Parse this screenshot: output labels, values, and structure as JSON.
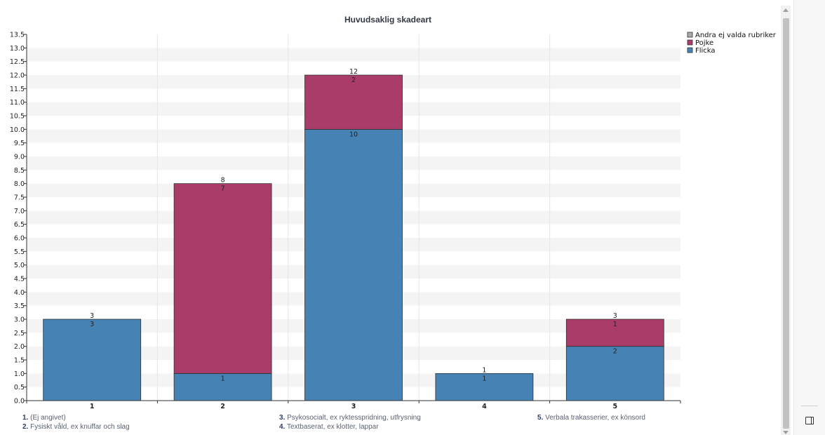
{
  "chart_data": {
    "type": "bar",
    "stacked": true,
    "title": "Huvudsaklig skadeart",
    "categories": [
      "1",
      "2",
      "3",
      "4",
      "5"
    ],
    "series": [
      {
        "name": "Flicka",
        "color": "#4682b4",
        "values": [
          3,
          1,
          10,
          1,
          2
        ]
      },
      {
        "name": "Pojke",
        "color": "#aa3c69",
        "values": [
          0,
          7,
          2,
          0,
          1
        ]
      },
      {
        "name": "Andra ej valda rubriker",
        "color": "#a9a9a9",
        "values": [
          0,
          0,
          0,
          0,
          0
        ]
      }
    ],
    "totals": [
      3,
      8,
      12,
      1,
      3
    ],
    "ylim": [
      0,
      13.5
    ],
    "ytick_step": 0.5,
    "ytick_labels": [
      "0.0",
      "0.5",
      "1.0",
      "1.5",
      "2.0",
      "2.5",
      "3.0",
      "3.5",
      "4.0",
      "4.5",
      "5.0",
      "5.5",
      "6.0",
      "6.5",
      "7.0",
      "7.5",
      "8.0",
      "8.5",
      "9.0",
      "9.5",
      "10.0",
      "10.5",
      "11.0",
      "11.5",
      "12.0",
      "12.5",
      "13.0",
      "13.5"
    ],
    "xlabel": "",
    "ylabel": "",
    "grid": true,
    "legend_position": "top-right",
    "legend_order": [
      "Andra ej valda rubriker",
      "Pojke",
      "Flicka"
    ]
  },
  "category_notes": [
    {
      "num": "1.",
      "text": " (Ej angivet)"
    },
    {
      "num": "2.",
      "text": " Fysiskt våld, ex knuffar och slag"
    },
    {
      "num": "3.",
      "text": " Psykosocialt, ex ryktesspridning, utfrysning"
    },
    {
      "num": "4.",
      "text": " Textbaserat, ex klotter, lappar"
    },
    {
      "num": "5.",
      "text": " Verbala trakasserier, ex könsord"
    }
  ]
}
